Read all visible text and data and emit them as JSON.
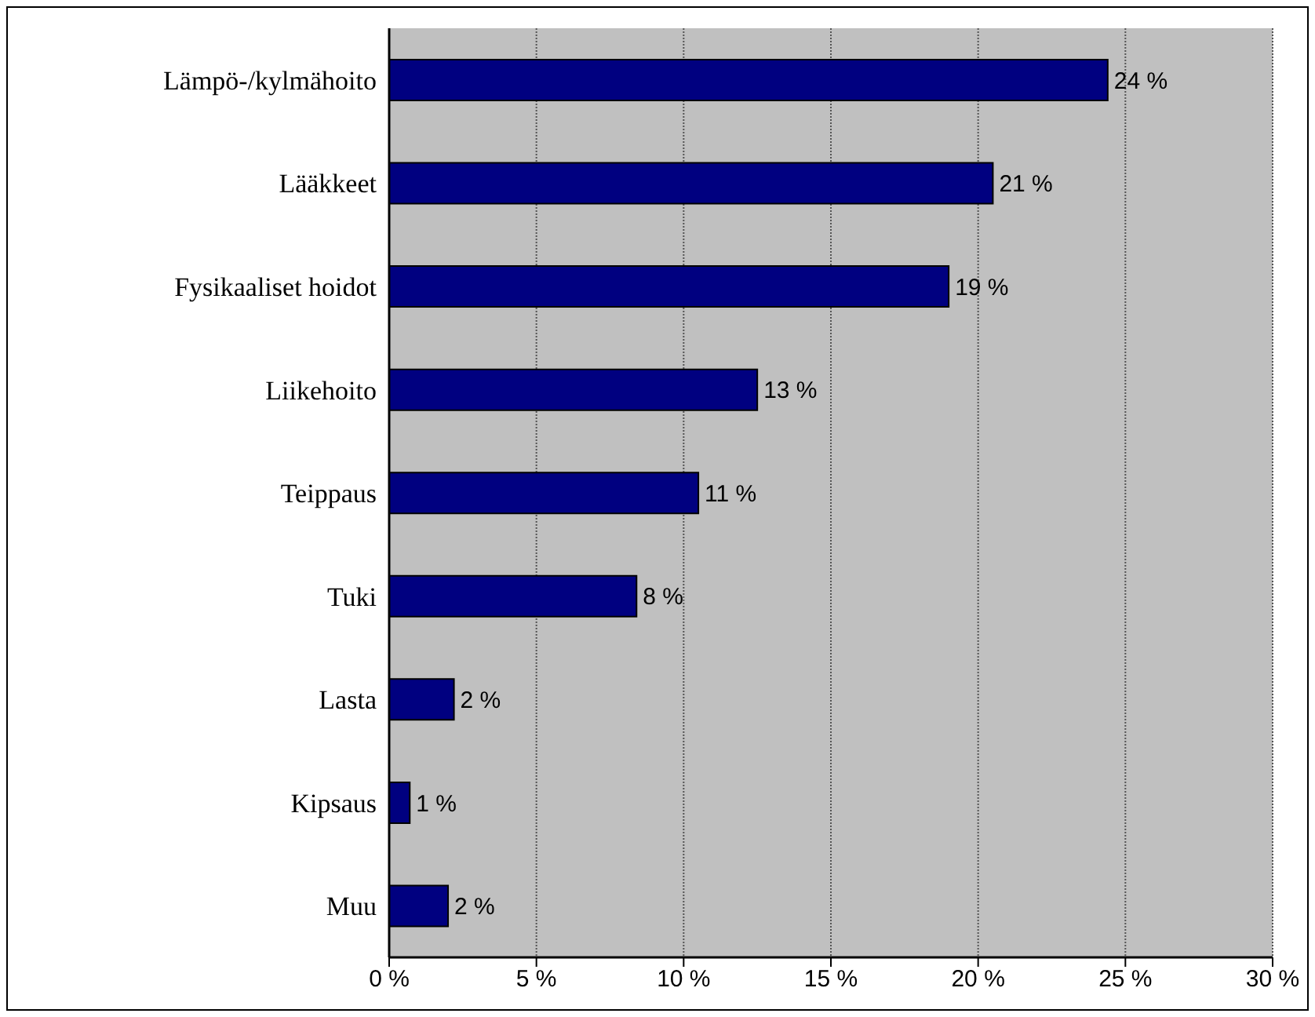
{
  "chart_data": {
    "type": "bar",
    "orientation": "horizontal",
    "categories": [
      "Lämpö-/kylmähoito",
      "Lääkkeet",
      "Fysikaaliset hoidot",
      "Liikehoito",
      "Teippaus",
      "Tuki",
      "Lasta",
      "Kipsaus",
      "Muu"
    ],
    "values": [
      24.4,
      20.5,
      19.0,
      12.5,
      10.5,
      8.4,
      2.2,
      0.7,
      2.0
    ],
    "value_labels": [
      "24 %",
      "21 %",
      "19 %",
      "13 %",
      "11 %",
      "8 %",
      "2 %",
      "1 %",
      "2 %"
    ],
    "color": "#000080",
    "xlim": [
      0,
      30
    ],
    "xticks": [
      {
        "value": 0,
        "label": "0 %"
      },
      {
        "value": 5,
        "label": "5 %"
      },
      {
        "value": 10,
        "label": "10 %"
      },
      {
        "value": 15,
        "label": "15 %"
      },
      {
        "value": 20,
        "label": "20 %"
      },
      {
        "value": 25,
        "label": "25 %"
      },
      {
        "value": 30,
        "label": "30 %"
      }
    ],
    "grid": "x"
  }
}
